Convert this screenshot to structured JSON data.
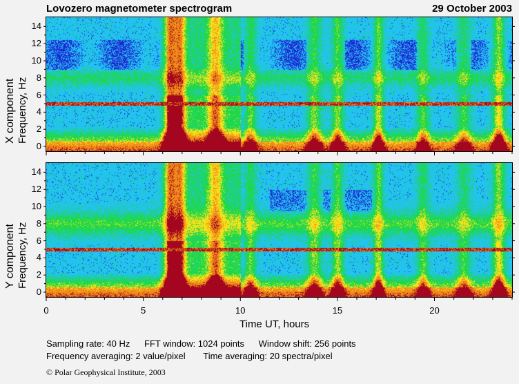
{
  "header": {
    "title": "Lovozero magnetometer spectrogram",
    "date": "29 October 2003"
  },
  "chart_data": [
    {
      "type": "heatmap",
      "component_label": "X  component",
      "ylabel": "Frequency, Hz",
      "xlabel": "",
      "xlim": [
        0,
        24
      ],
      "ylim": [
        0,
        15
      ],
      "yticks": [
        0,
        2,
        4,
        6,
        8,
        10,
        12,
        14
      ],
      "xticks": [
        0,
        5,
        10,
        15,
        20
      ],
      "x_tick_labels": []
    },
    {
      "type": "heatmap",
      "component_label": "Y  component",
      "ylabel": "Frequency, Hz",
      "xlabel": "Time UT, hours",
      "xlim": [
        0,
        24
      ],
      "ylim": [
        0,
        15
      ],
      "yticks": [
        0,
        2,
        4,
        6,
        8,
        10,
        12,
        14
      ],
      "xticks": [
        0,
        5,
        10,
        15,
        20
      ],
      "x_tick_labels": [
        "0",
        "5",
        "10",
        "15",
        "20"
      ]
    }
  ],
  "footer": {
    "sampling": "Sampling rate: 40 Hz",
    "fft": "FFT window: 1024 points",
    "shift": "Window shift: 256 points",
    "freq_avg": "Frequency averaging: 2 value/pixel",
    "time_avg": "Time averaging: 20 spectra/pixel",
    "copyright": "© Polar Geophysical Institute, 2003"
  },
  "colors": {
    "background": "#f2f2f2",
    "level_low": "#1e24d2",
    "level_base": "#22c3f0",
    "level_mid": "#1fd84a",
    "level_high": "#f5e21a",
    "level_higher": "#f08a1a",
    "level_max": "#a3061e"
  }
}
